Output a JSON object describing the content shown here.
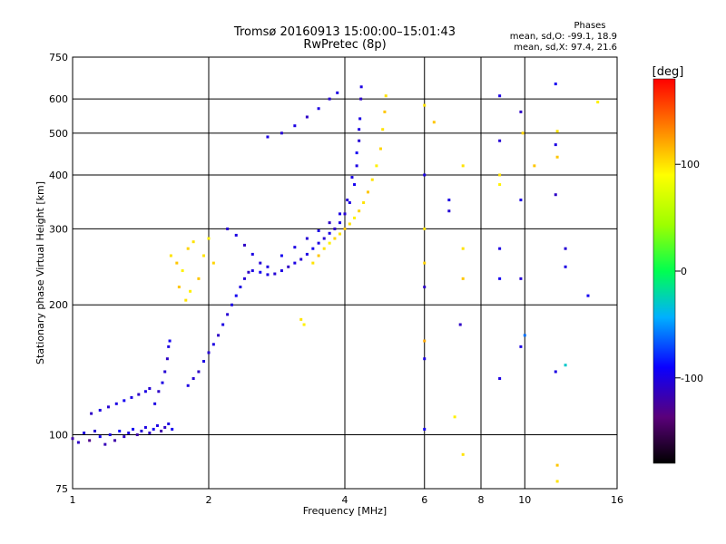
{
  "chart_data": {
    "type": "scatter",
    "title": "Tromsø 20160913 15:00:00–15:01:43",
    "subtitle": "RwPretec (8p)",
    "phases_title": "Phases",
    "phases_o": "mean, sd,O: -99.1, 18.9",
    "phases_x": "mean, sd,X:  97.4, 21.6",
    "xlabel": "Frequency [MHz]",
    "ylabel": "Stationary phase Virtual Height [km]",
    "x_scale": "log",
    "y_scale": "log",
    "xlim": [
      1,
      16
    ],
    "ylim": [
      75,
      750
    ],
    "x_ticks": [
      "1",
      "2",
      "4",
      "6",
      "8",
      "10",
      "16"
    ],
    "y_ticks": [
      "75",
      "100",
      "200",
      "300",
      "400",
      "500",
      "600",
      "750"
    ],
    "x_tick_values": [
      1,
      2,
      4,
      6,
      8,
      10,
      16
    ],
    "y_tick_values": [
      75,
      100,
      200,
      300,
      400,
      500,
      600,
      750
    ],
    "x_grid": [
      2,
      4,
      6,
      8,
      10
    ],
    "y_grid": [
      100,
      200,
      300,
      400,
      500,
      600
    ],
    "colorbar": {
      "label": "[deg]",
      "range": [
        -180,
        180
      ],
      "ticks": [
        "100",
        "0",
        "-100"
      ],
      "tick_values": [
        100,
        0,
        -100
      ]
    },
    "series": [
      {
        "values": [
          [
            1.0,
            98,
            -120
          ],
          [
            1.03,
            96,
            -110
          ],
          [
            1.06,
            101,
            -100
          ],
          [
            1.09,
            97,
            -130
          ],
          [
            1.12,
            102,
            -105
          ],
          [
            1.15,
            99,
            -95
          ],
          [
            1.18,
            95,
            -115
          ],
          [
            1.21,
            100,
            -100
          ],
          [
            1.24,
            97,
            -120
          ],
          [
            1.27,
            102,
            -90
          ],
          [
            1.3,
            99,
            -110
          ],
          [
            1.33,
            101,
            -100
          ],
          [
            1.36,
            103,
            -95
          ],
          [
            1.39,
            100,
            -120
          ],
          [
            1.42,
            102,
            -105
          ],
          [
            1.45,
            104,
            -100
          ],
          [
            1.48,
            101,
            -110
          ],
          [
            1.51,
            103,
            -95
          ],
          [
            1.54,
            105,
            -100
          ],
          [
            1.57,
            102,
            -120
          ],
          [
            1.6,
            104,
            -110
          ],
          [
            1.63,
            106,
            -100
          ],
          [
            1.66,
            103,
            -95
          ],
          [
            1.1,
            112,
            -110
          ],
          [
            1.15,
            114,
            -100
          ],
          [
            1.2,
            116,
            -105
          ],
          [
            1.25,
            118,
            -100
          ],
          [
            1.3,
            120,
            -95
          ],
          [
            1.35,
            122,
            -100
          ],
          [
            1.4,
            124,
            -110
          ],
          [
            1.45,
            126,
            -100
          ],
          [
            1.48,
            128,
            -105
          ],
          [
            1.52,
            118,
            -100
          ],
          [
            1.55,
            126,
            -110
          ],
          [
            1.58,
            132,
            -100
          ],
          [
            1.6,
            140,
            -105
          ],
          [
            1.62,
            150,
            -110
          ],
          [
            1.63,
            160,
            -100
          ],
          [
            1.64,
            165,
            -95
          ],
          [
            1.8,
            130,
            -100
          ],
          [
            1.85,
            135,
            -105
          ],
          [
            1.9,
            140,
            -110
          ],
          [
            1.95,
            148,
            -100
          ],
          [
            2.0,
            155,
            -105
          ],
          [
            2.05,
            162,
            -100
          ],
          [
            2.1,
            170,
            -110
          ],
          [
            2.15,
            180,
            -100
          ],
          [
            2.2,
            190,
            -105
          ],
          [
            2.25,
            200,
            -100
          ],
          [
            2.3,
            210,
            -95
          ],
          [
            2.35,
            220,
            -100
          ],
          [
            2.4,
            230,
            -105
          ],
          [
            2.45,
            238,
            -110
          ],
          [
            2.5,
            240,
            -100
          ],
          [
            2.6,
            238,
            -95
          ],
          [
            2.7,
            235,
            -100
          ],
          [
            2.8,
            236,
            -105
          ],
          [
            2.9,
            240,
            -100
          ],
          [
            3.0,
            245,
            -110
          ],
          [
            3.1,
            250,
            -100
          ],
          [
            3.2,
            255,
            -105
          ],
          [
            3.3,
            262,
            -100
          ],
          [
            3.4,
            270,
            -95
          ],
          [
            3.5,
            278,
            -100
          ],
          [
            3.6,
            285,
            -105
          ],
          [
            3.7,
            293,
            -100
          ],
          [
            3.8,
            300,
            -110
          ],
          [
            3.9,
            310,
            -100
          ],
          [
            4.0,
            325,
            -105
          ],
          [
            4.1,
            345,
            -100
          ],
          [
            4.2,
            380,
            -95
          ],
          [
            4.25,
            420,
            -100
          ],
          [
            4.3,
            480,
            -105
          ],
          [
            4.32,
            540,
            -100
          ],
          [
            4.34,
            600,
            -110
          ],
          [
            4.35,
            640,
            -100
          ],
          [
            2.2,
            300,
            -105
          ],
          [
            2.3,
            290,
            -100
          ],
          [
            2.4,
            275,
            -110
          ],
          [
            2.5,
            262,
            -100
          ],
          [
            2.6,
            250,
            -105
          ],
          [
            2.7,
            245,
            -100
          ],
          [
            2.9,
            260,
            -95
          ],
          [
            3.1,
            272,
            -100
          ],
          [
            3.3,
            285,
            -105
          ],
          [
            3.5,
            297,
            -100
          ],
          [
            3.7,
            310,
            -110
          ],
          [
            3.9,
            325,
            -100
          ],
          [
            4.05,
            350,
            -105
          ],
          [
            4.15,
            395,
            -100
          ],
          [
            4.25,
            450,
            -95
          ],
          [
            4.3,
            510,
            -100
          ],
          [
            2.7,
            490,
            -100
          ],
          [
            2.9,
            500,
            -105
          ],
          [
            3.1,
            520,
            -100
          ],
          [
            3.3,
            545,
            -110
          ],
          [
            3.5,
            570,
            -100
          ],
          [
            3.7,
            600,
            -105
          ],
          [
            3.85,
            620,
            -100
          ]
        ]
      },
      {
        "values": [
          [
            1.65,
            260,
            100
          ],
          [
            1.7,
            250,
            110
          ],
          [
            1.75,
            240,
            95
          ],
          [
            1.8,
            270,
            105
          ],
          [
            1.85,
            280,
            100
          ],
          [
            1.9,
            230,
            110
          ],
          [
            1.95,
            260,
            100
          ],
          [
            2.0,
            285,
            95
          ],
          [
            2.05,
            250,
            105
          ],
          [
            1.72,
            220,
            110
          ],
          [
            1.78,
            205,
            100
          ],
          [
            1.82,
            215,
            95
          ],
          [
            3.4,
            250,
            100
          ],
          [
            3.5,
            260,
            110
          ],
          [
            3.6,
            270,
            100
          ],
          [
            3.7,
            278,
            95
          ],
          [
            3.8,
            285,
            105
          ],
          [
            3.9,
            292,
            100
          ],
          [
            4.0,
            300,
            110
          ],
          [
            4.1,
            308,
            100
          ],
          [
            4.2,
            318,
            95
          ],
          [
            4.3,
            330,
            105
          ],
          [
            4.4,
            345,
            100
          ],
          [
            4.5,
            365,
            110
          ],
          [
            4.6,
            390,
            100
          ],
          [
            4.7,
            420,
            95
          ],
          [
            4.8,
            460,
            105
          ],
          [
            4.85,
            510,
            100
          ],
          [
            4.9,
            560,
            110
          ],
          [
            4.93,
            610,
            100
          ],
          [
            3.2,
            185,
            100
          ],
          [
            3.25,
            180,
            95
          ],
          [
            6.0,
            580,
            100
          ],
          [
            6.3,
            530,
            110
          ],
          [
            7.3,
            420,
            100
          ],
          [
            8.8,
            380,
            95
          ],
          [
            9.9,
            500,
            105
          ],
          [
            11.8,
            505,
            100
          ],
          [
            11.8,
            440,
            110
          ],
          [
            6.0,
            300,
            100
          ],
          [
            6.0,
            250,
            105
          ],
          [
            7.3,
            270,
            100
          ],
          [
            7.3,
            230,
            110
          ],
          [
            7.3,
            90,
            100
          ],
          [
            11.8,
            85,
            110
          ],
          [
            11.8,
            78,
            100
          ],
          [
            14.5,
            590,
            95
          ],
          [
            6.0,
            165,
            120
          ],
          [
            7.0,
            110,
            95
          ],
          [
            8.8,
            400,
            100
          ],
          [
            10.5,
            420,
            110
          ]
        ]
      },
      {
        "values": [
          [
            6.0,
            400,
            -100
          ],
          [
            6.0,
            220,
            -110
          ],
          [
            6.0,
            150,
            -100
          ],
          [
            6.0,
            103,
            -95
          ],
          [
            6.8,
            330,
            -105
          ],
          [
            6.8,
            350,
            -100
          ],
          [
            7.2,
            180,
            -110
          ],
          [
            8.8,
            610,
            -100
          ],
          [
            8.8,
            480,
            -105
          ],
          [
            8.8,
            270,
            -100
          ],
          [
            8.8,
            230,
            -95
          ],
          [
            8.8,
            135,
            -100
          ],
          [
            9.8,
            560,
            -110
          ],
          [
            9.8,
            350,
            -100
          ],
          [
            9.8,
            230,
            -105
          ],
          [
            9.8,
            160,
            -100
          ],
          [
            11.7,
            650,
            -95
          ],
          [
            11.7,
            470,
            -100
          ],
          [
            11.7,
            360,
            -110
          ],
          [
            11.7,
            140,
            -100
          ],
          [
            12.3,
            270,
            -105
          ],
          [
            12.3,
            245,
            -100
          ],
          [
            13.8,
            210,
            -95
          ],
          [
            10.0,
            170,
            -60
          ],
          [
            12.3,
            145,
            -30
          ]
        ]
      }
    ]
  }
}
